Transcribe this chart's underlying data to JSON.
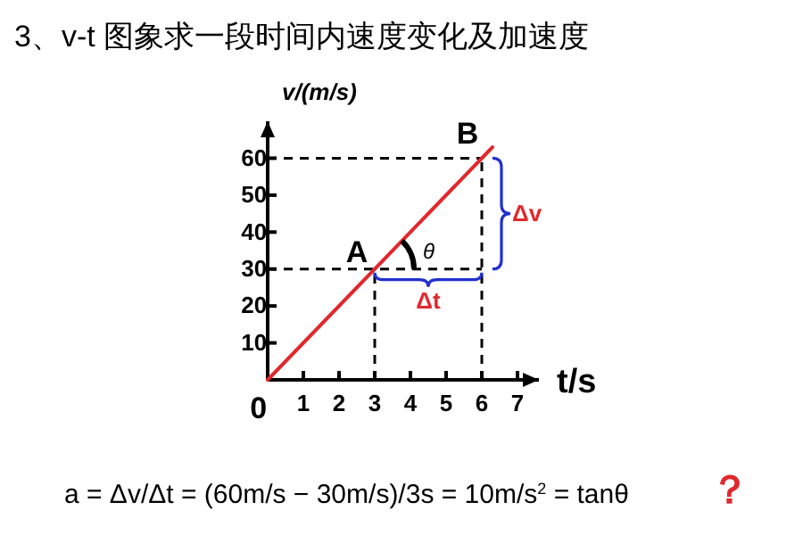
{
  "chart_data": {
    "type": "line",
    "title": "3、v-t 图象求一段时间内速度变化及加速度",
    "xlabel": "t/s",
    "ylabel": "v/(m/s)",
    "x": [
      0,
      6.3
    ],
    "series": [
      {
        "color": "#e0282e",
        "values": [
          0,
          63
        ]
      }
    ],
    "xlim": [
      0,
      7.6
    ],
    "ylim": [
      0,
      70
    ],
    "xticks": [
      0,
      1,
      2,
      3,
      4,
      5,
      6,
      7
    ],
    "yticks": [
      {
        "value": 0,
        "label": null
      },
      10,
      20,
      30,
      40,
      50,
      60
    ],
    "marker": "none",
    "line_style": "solid",
    "ref_lines": [
      {
        "axis": "x",
        "value": 3,
        "color": "#000000",
        "line_style": "dashed"
      },
      {
        "axis": "x",
        "value": 6,
        "color": "#000000",
        "line_style": "dashed"
      },
      {
        "axis": "y",
        "value": 30,
        "color": "#000000",
        "line_style": "dashed"
      },
      {
        "axis": "y",
        "value": 60,
        "color": "#000000",
        "line_style": "dashed"
      }
    ],
    "annotations": [
      {
        "text": "A",
        "x": 3,
        "y": 30
      },
      {
        "text": "B",
        "x": 6,
        "y": 60
      },
      "θ",
      "Δv",
      "Δt",
      "a = Δv/Δt = (60m/s − 30m/s)/3s = 10m/s$^{2}$  = tanθ",
      "？"
    ]
  }
}
